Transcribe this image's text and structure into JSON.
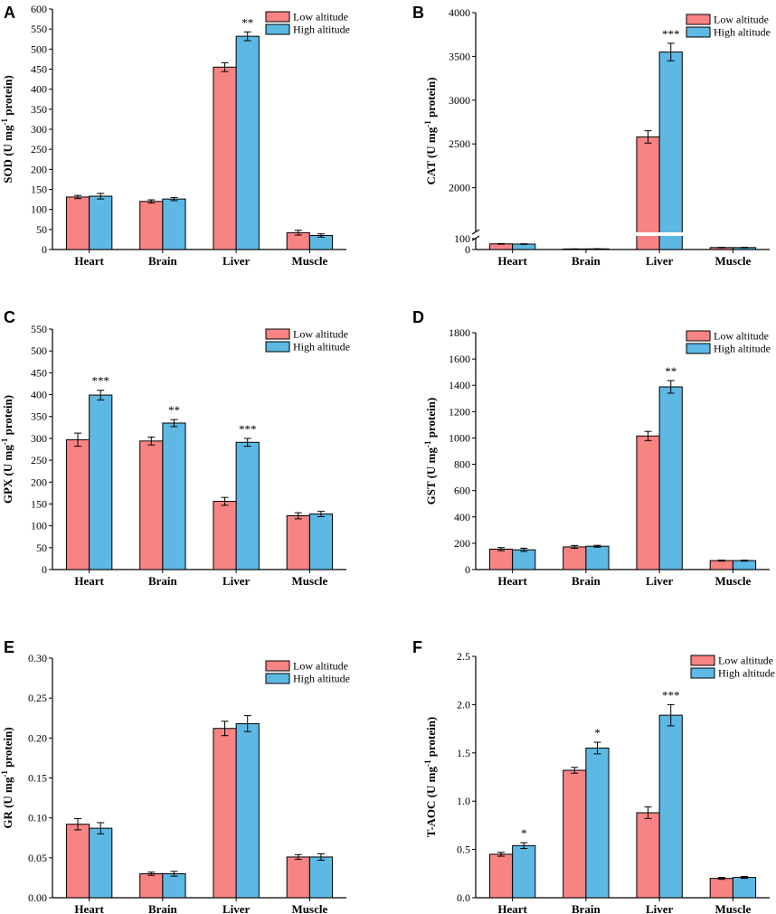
{
  "legend": {
    "series": [
      "Low altitude",
      "High altitude"
    ]
  },
  "colors": {
    "low": "#F88383",
    "high": "#5DB8E3"
  },
  "chart_data": [
    {
      "panel": "A",
      "type": "bar",
      "categories": [
        "Heart",
        "Brain",
        "Liver",
        "Muscle"
      ],
      "ylabel": "SOD (U mg-1 protein)",
      "ylim": [
        0,
        600
      ],
      "yticks": [
        0,
        50,
        100,
        150,
        200,
        250,
        300,
        350,
        400,
        450,
        500,
        550,
        600
      ],
      "series": [
        {
          "name": "Low altitude",
          "values": [
            131,
            120,
            455,
            42
          ],
          "errors": [
            4,
            4,
            11,
            6
          ]
        },
        {
          "name": "High altitude",
          "values": [
            133,
            126,
            532,
            35
          ],
          "errors": [
            7,
            4,
            11,
            4
          ]
        }
      ],
      "significance": [
        "",
        "",
        "**",
        ""
      ]
    },
    {
      "panel": "B",
      "type": "bar",
      "categories": [
        "Heart",
        "Brain",
        "Liver",
        "Muscle"
      ],
      "ylabel": "CAT (U mg-1 protein)",
      "ylim": [
        0,
        4000
      ],
      "yticks": [
        0,
        100,
        2000,
        2500,
        3000,
        3500,
        4000
      ],
      "axis_break": [
        100,
        1500
      ],
      "series": [
        {
          "name": "Low altitude",
          "values": [
            52,
            5,
            2580,
            18
          ],
          "errors": [
            3,
            1,
            70,
            2
          ]
        },
        {
          "name": "High altitude",
          "values": [
            50,
            6,
            3550,
            18
          ],
          "errors": [
            3,
            1,
            100,
            2
          ]
        }
      ],
      "significance": [
        "",
        "",
        "***",
        ""
      ]
    },
    {
      "panel": "C",
      "type": "bar",
      "categories": [
        "Heart",
        "Brain",
        "Liver",
        "Muscle"
      ],
      "ylabel": "GPX (U mg-1 protein)",
      "ylim": [
        0,
        550
      ],
      "yticks": [
        0,
        50,
        100,
        150,
        200,
        250,
        300,
        350,
        400,
        450,
        500,
        550
      ],
      "series": [
        {
          "name": "Low altitude",
          "values": [
            297,
            294,
            156,
            123
          ],
          "errors": [
            15,
            9,
            9,
            7
          ]
        },
        {
          "name": "High altitude",
          "values": [
            399,
            335,
            291,
            127
          ],
          "errors": [
            11,
            8,
            9,
            6
          ]
        }
      ],
      "significance": [
        "***",
        "**",
        "***",
        ""
      ]
    },
    {
      "panel": "D",
      "type": "bar",
      "categories": [
        "Heart",
        "Brain",
        "Liver",
        "Muscle"
      ],
      "ylabel": "GST (U mg-1 protein)",
      "ylim": [
        0,
        1800
      ],
      "yticks": [
        0,
        200,
        400,
        600,
        800,
        1000,
        1200,
        1400,
        1600,
        1800
      ],
      "series": [
        {
          "name": "Low altitude",
          "values": [
            155,
            172,
            1015,
            68
          ],
          "errors": [
            12,
            11,
            35,
            4
          ]
        },
        {
          "name": "High altitude",
          "values": [
            150,
            177,
            1388,
            68
          ],
          "errors": [
            12,
            7,
            48,
            4
          ]
        }
      ],
      "significance": [
        "",
        "",
        "**",
        ""
      ]
    },
    {
      "panel": "E",
      "type": "bar",
      "categories": [
        "Heart",
        "Brain",
        "Liver",
        "Muscle"
      ],
      "ylabel": "GR (U mg-1 protein)",
      "ylim": [
        0,
        0.3
      ],
      "yticks": [
        0.0,
        0.05,
        0.1,
        0.15,
        0.2,
        0.25,
        0.3
      ],
      "tick_decimals": 2,
      "series": [
        {
          "name": "Low altitude",
          "values": [
            0.092,
            0.03,
            0.212,
            0.051
          ],
          "errors": [
            0.007,
            0.002,
            0.009,
            0.003
          ]
        },
        {
          "name": "High altitude",
          "values": [
            0.087,
            0.03,
            0.218,
            0.051
          ],
          "errors": [
            0.007,
            0.003,
            0.01,
            0.004
          ]
        }
      ],
      "significance": [
        "",
        "",
        "",
        ""
      ]
    },
    {
      "panel": "F",
      "type": "bar",
      "categories": [
        "Heart",
        "Brain",
        "Liver",
        "Muscle"
      ],
      "ylabel": "T-AOC (U mg-1 protein)",
      "ylim": [
        0,
        2.5
      ],
      "yticks": [
        0.0,
        0.5,
        1.0,
        1.5,
        2.0,
        2.5
      ],
      "tick_decimals": 1,
      "series": [
        {
          "name": "Low altitude",
          "values": [
            0.45,
            1.32,
            0.88,
            0.2
          ],
          "errors": [
            0.02,
            0.03,
            0.06,
            0.01
          ]
        },
        {
          "name": "High altitude",
          "values": [
            0.54,
            1.55,
            1.89,
            0.21
          ],
          "errors": [
            0.03,
            0.06,
            0.11,
            0.01
          ]
        }
      ],
      "significance": [
        "*",
        "*",
        "***",
        ""
      ]
    }
  ]
}
